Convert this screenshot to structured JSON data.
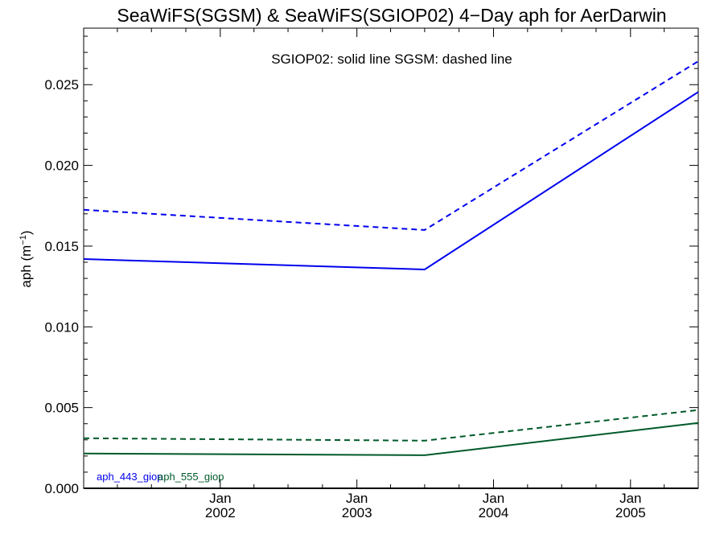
{
  "chart_data": {
    "type": "line",
    "title": "SeaWiFS(SGSM) & SeaWiFS(SGIOP02) 4−Day aph for AerDarwin",
    "annotation": "SGIOP02: solid line   SGSM: dashed line",
    "ylabel_base": "aph (m",
    "ylabel_sup": "−1",
    "ylabel_close": ")",
    "ylim": [
      0.0,
      0.0285
    ],
    "y_ticks": [
      "0.000",
      "0.005",
      "0.010",
      "0.015",
      "0.020",
      "0.025"
    ],
    "x_range": [
      "2001-01-01",
      "2005-07-01"
    ],
    "x_ticks": [
      {
        "date": "2002-01-01",
        "month": "Jan",
        "year": "2002"
      },
      {
        "date": "2003-01-01",
        "month": "Jan",
        "year": "2003"
      },
      {
        "date": "2004-01-01",
        "month": "Jan",
        "year": "2004"
      },
      {
        "date": "2005-01-01",
        "month": "Jan",
        "year": "2005"
      }
    ],
    "grid": false,
    "legend_position": "bottom-left",
    "series": [
      {
        "name": "aph_443_giop",
        "color": "#0000ee",
        "style": "solid",
        "points": [
          [
            "2001-01-01",
            0.0142
          ],
          [
            "2003-07-01",
            0.01355
          ],
          [
            "2005-07-01",
            0.02455
          ]
        ]
      },
      {
        "color": "#0000ee",
        "style": "dashed",
        "points": [
          [
            "2001-01-01",
            0.01725
          ],
          [
            "2003-07-01",
            0.016
          ],
          [
            "2005-07-01",
            0.02645
          ]
        ]
      },
      {
        "name": "aph_555_giop",
        "color": "#005a2a",
        "style": "solid",
        "points": [
          [
            "2001-01-01",
            0.00215
          ],
          [
            "2003-07-01",
            0.00205
          ],
          [
            "2005-07-01",
            0.00405
          ]
        ]
      },
      {
        "color": "#005a2a",
        "style": "dashed",
        "points": [
          [
            "2001-01-01",
            0.0031
          ],
          [
            "2003-07-01",
            0.00295
          ],
          [
            "2005-07-01",
            0.00485
          ]
        ]
      }
    ]
  }
}
